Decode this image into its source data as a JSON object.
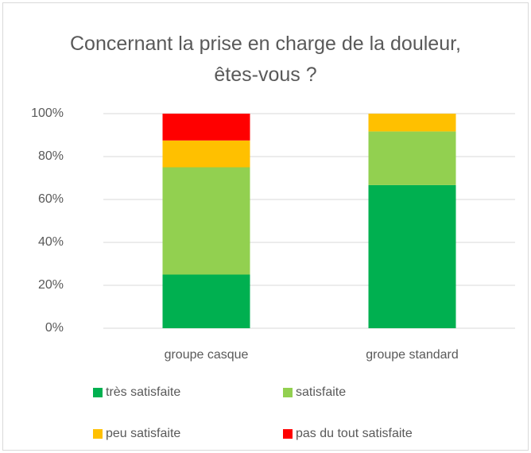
{
  "chart_data": {
    "type": "bar",
    "stacked": true,
    "title": "Concernant la prise en charge de la douleur, êtes-vous ?",
    "categories": [
      "groupe casque",
      "groupe standard"
    ],
    "series": [
      {
        "name": "très satisfaite",
        "color": "#00b050",
        "values": [
          25,
          66.7
        ]
      },
      {
        "name": "satisfaite",
        "color": "#92d050",
        "values": [
          50,
          25
        ]
      },
      {
        "name": "peu satisfaite",
        "color": "#ffc000",
        "values": [
          12.5,
          8.3
        ]
      },
      {
        "name": "pas du tout satisfaite",
        "color": "#ff0000",
        "values": [
          12.5,
          0
        ]
      }
    ],
    "ylim": [
      0,
      100
    ],
    "yticks": [
      {
        "value": 0,
        "label": "0%"
      },
      {
        "value": 20,
        "label": "20%"
      },
      {
        "value": 40,
        "label": "40%"
      },
      {
        "value": 60,
        "label": "60%"
      },
      {
        "value": 80,
        "label": "80%"
      },
      {
        "value": 100,
        "label": "100%"
      }
    ],
    "grid": true,
    "legend": "bottom"
  }
}
